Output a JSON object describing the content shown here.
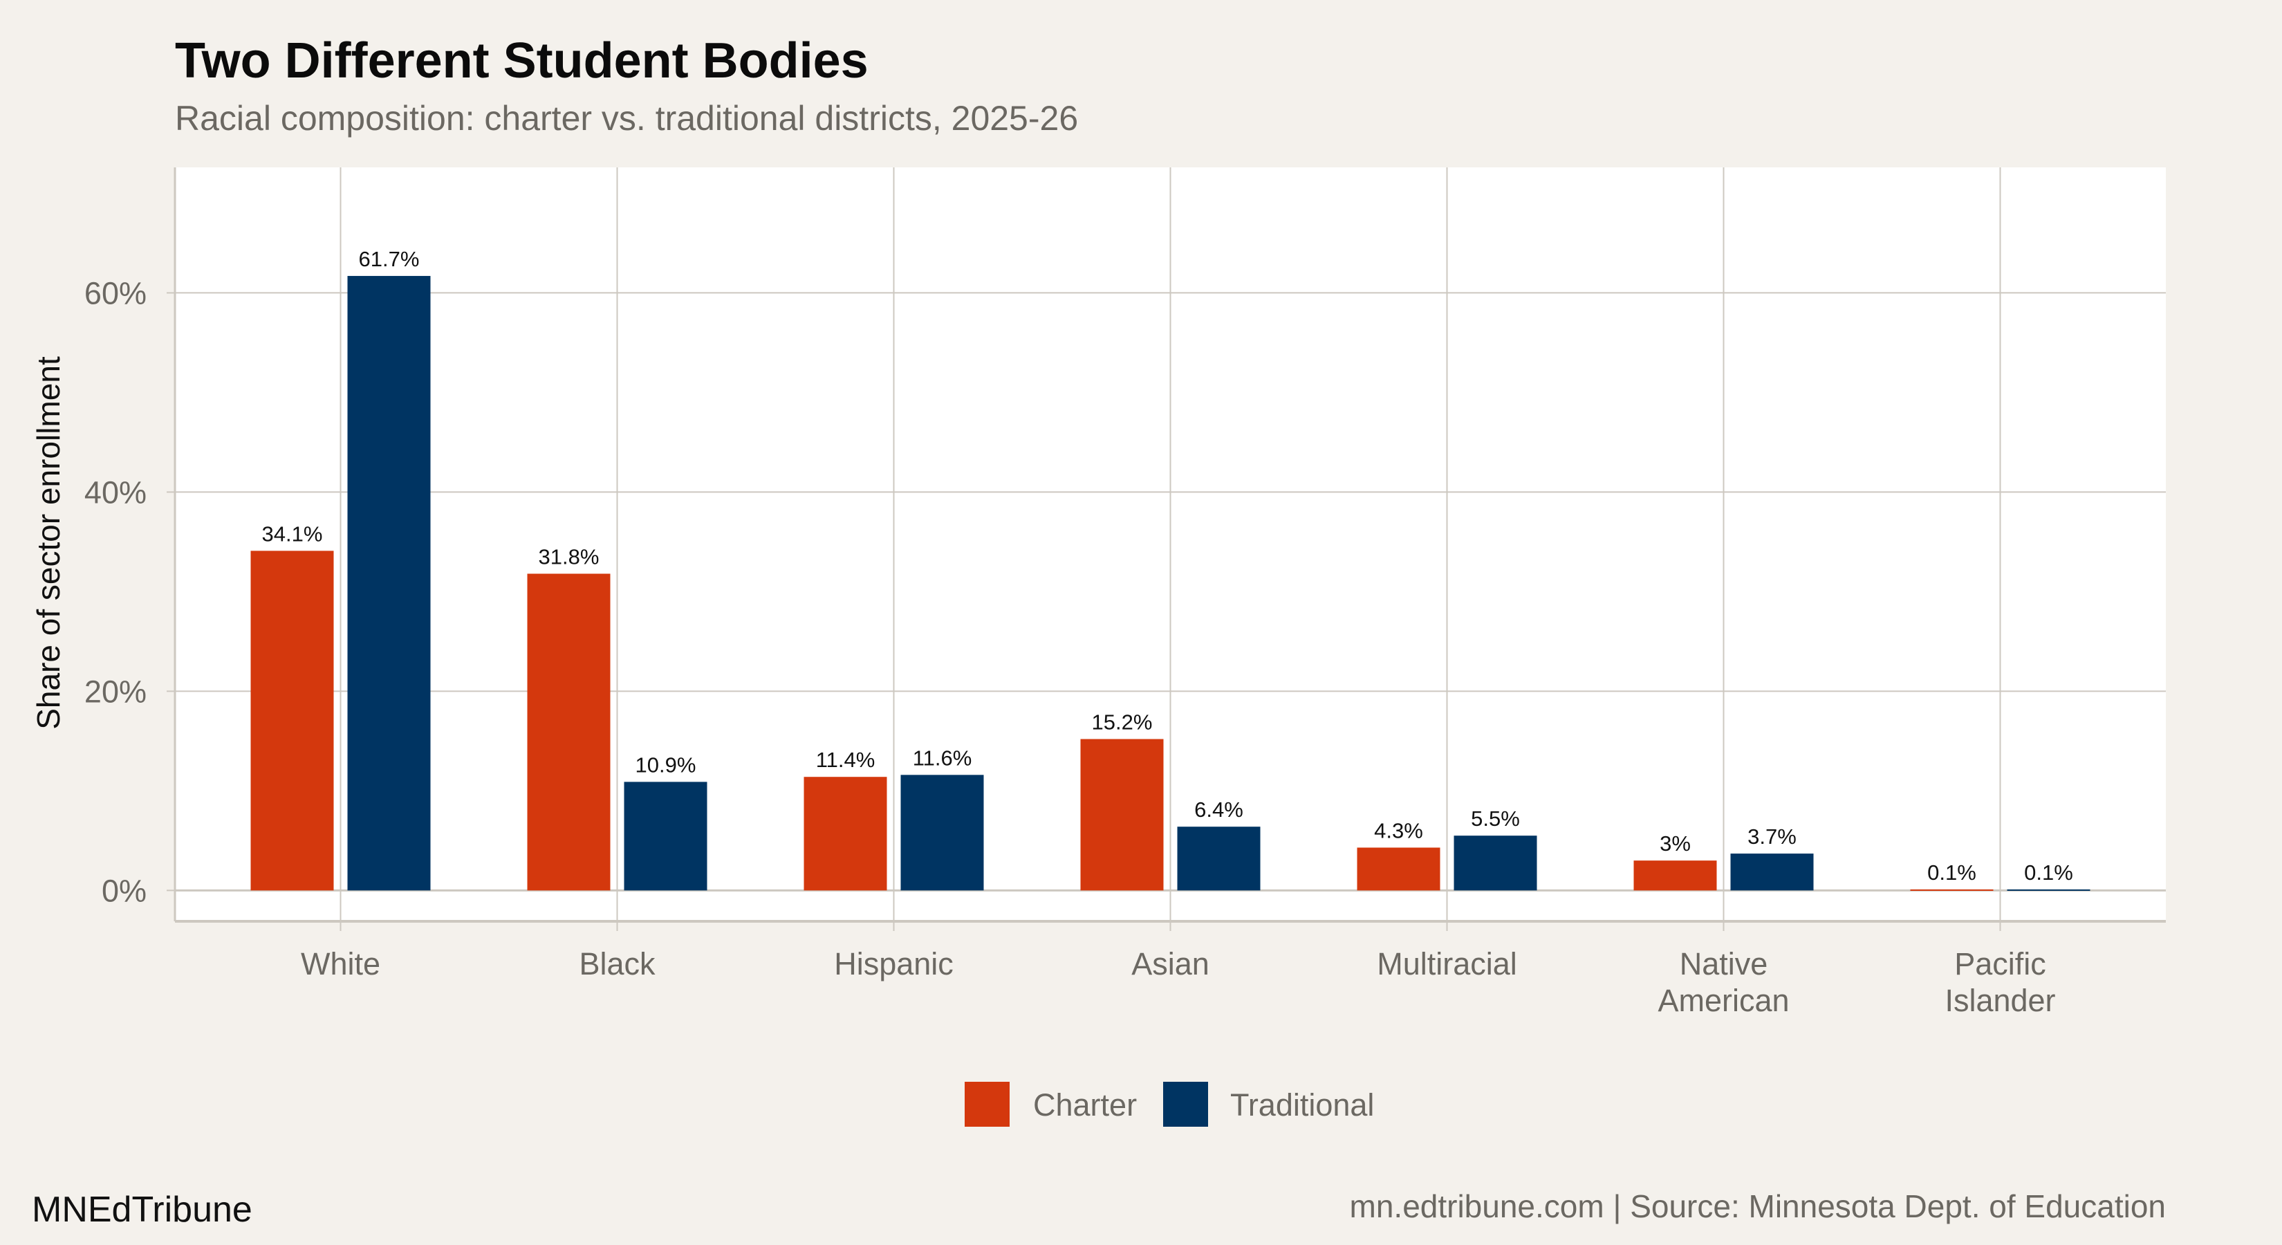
{
  "chart_data": {
    "type": "bar",
    "title": "Two Different Student Bodies",
    "subtitle": "Racial composition: charter vs. traditional districts, 2025-26",
    "xlabel": "",
    "ylabel": "Share of sector enrollment",
    "categories": [
      [
        "White"
      ],
      [
        "Black"
      ],
      [
        "Hispanic"
      ],
      [
        "Asian"
      ],
      [
        "Multiracial"
      ],
      [
        "Native",
        "American"
      ],
      [
        "Pacific",
        "Islander"
      ]
    ],
    "series": [
      {
        "name": "Charter",
        "color": "#d4380d",
        "values": [
          34.1,
          31.8,
          11.4,
          15.2,
          4.3,
          3.0,
          0.1
        ],
        "labels": [
          "34.1%",
          "31.8%",
          "11.4%",
          "15.2%",
          "4.3%",
          "3%",
          "0.1%"
        ]
      },
      {
        "name": "Traditional",
        "color": "#003462",
        "values": [
          61.7,
          10.9,
          11.6,
          6.4,
          5.5,
          3.7,
          0.1
        ],
        "labels": [
          "61.7%",
          "10.9%",
          "11.6%",
          "6.4%",
          "5.5%",
          "3.7%",
          "0.1%"
        ]
      }
    ],
    "yticks": [
      0,
      20,
      40,
      60
    ],
    "ytick_labels": [
      "0%",
      "20%",
      "40%",
      "60%"
    ],
    "ylim": [
      -3.1,
      72.6
    ],
    "grid": true,
    "legend_position": "bottom"
  },
  "footer": {
    "brand": "MNEdTribune",
    "caption": "mn.edtribune.com | Source: Minnesota Dept. of Education"
  }
}
